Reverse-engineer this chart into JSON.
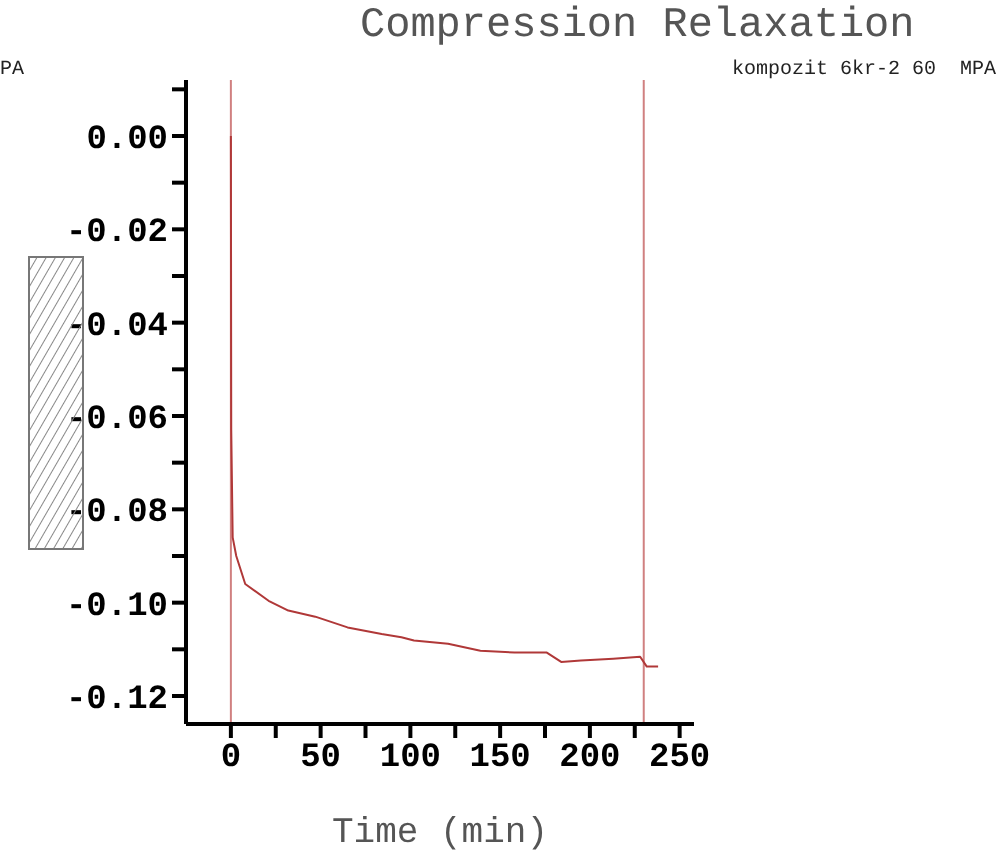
{
  "chart_data": {
    "type": "line",
    "title": "Compression Relaxation",
    "xlabel": "Time (min)",
    "annotations": [
      "PA",
      "kompozit 6kr-2 60  MPA"
    ],
    "xlim": [
      -25,
      258
    ],
    "xticks": [
      0,
      {
        "value": 25,
        "label": null
      },
      50,
      {
        "value": 75,
        "label": null
      },
      100,
      {
        "value": 125,
        "label": null
      },
      150,
      {
        "value": 175,
        "label": null
      },
      200,
      {
        "value": 225,
        "label": null
      },
      250
    ],
    "ylim": [
      -0.126,
      0.012
    ],
    "yticks": [
      {
        "value": -0.12,
        "label": "-0.12"
      },
      {
        "value": -0.11,
        "label": null
      },
      {
        "value": -0.1,
        "label": "-0.10"
      },
      {
        "value": -0.09,
        "label": null
      },
      {
        "value": -0.08,
        "label": "-0.08"
      },
      {
        "value": -0.07,
        "label": null
      },
      {
        "value": -0.06,
        "label": "-0.06"
      },
      {
        "value": -0.05,
        "label": null
      },
      {
        "value": -0.04,
        "label": "-0.04"
      },
      {
        "value": -0.03,
        "label": null
      },
      {
        "value": -0.02,
        "label": "-0.02"
      },
      {
        "value": -0.01,
        "label": null
      },
      {
        "value": 0,
        "label": "0.00"
      },
      {
        "value": 0.01,
        "label": null
      }
    ],
    "ref_lines": [
      {
        "axis": "x",
        "value": 0,
        "color": "#d08080"
      },
      {
        "axis": "x",
        "value": 230,
        "color": "#d08080"
      }
    ],
    "grid": false,
    "legend": false,
    "marker": "none",
    "line_style": "solid",
    "series": [
      {
        "color": "#b03838",
        "x": [
          0,
          0.2,
          1,
          3,
          8,
          21,
          32,
          47,
          65,
          84,
          95,
          102,
          121,
          139,
          158,
          176,
          184,
          195,
          213,
          228,
          231.7,
          238
        ],
        "values": [
          0,
          -0.063,
          -0.086,
          -0.09,
          -0.096,
          -0.0996,
          -0.1017,
          -0.103,
          -0.1053,
          -0.1067,
          -0.1074,
          -0.1081,
          -0.1088,
          -0.1103,
          -0.1107,
          -0.1107,
          -0.1127,
          -0.1124,
          -0.112,
          -0.1116,
          -0.1137,
          -0.1137
        ]
      }
    ]
  }
}
